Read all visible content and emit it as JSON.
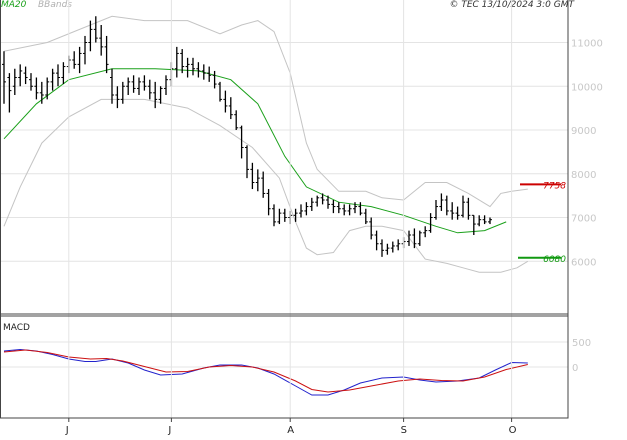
{
  "header": {
    "indicator_ma": "MA20",
    "indicator_bb": "BBands",
    "credit": "© TEC 13/10/2024 3:0 GMT"
  },
  "colors": {
    "ma": "#1aa01a",
    "bands": "#c4c4c4",
    "macd": "#2222cc",
    "signal": "#cc1111",
    "resistance": "#cc0000",
    "support": "#119911",
    "grid": "#e4e4e4",
    "bars": "#000000"
  },
  "chart_data": [
    {
      "type": "line",
      "title": "",
      "y_ticks": [
        6000,
        7000,
        8000,
        9000,
        10000,
        11000
      ],
      "y_tick_labels": [
        "6000",
        "7000",
        "8000",
        "9000",
        "10000",
        "11000"
      ],
      "x_ticks": [
        {
          "label": "J",
          "index": 12
        },
        {
          "label": "J",
          "index": 31
        },
        {
          "label": "A",
          "index": 53
        },
        {
          "label": "S",
          "index": 74
        },
        {
          "label": "O",
          "index": 94
        }
      ],
      "levels": [
        {
          "name": "resistance",
          "value": 7758,
          "label": "7758"
        },
        {
          "name": "support",
          "value": 6080,
          "label": "6080"
        }
      ],
      "ohlc": [
        [
          10500,
          10800,
          9600,
          10100
        ],
        [
          10200,
          10300,
          9400,
          9900
        ],
        [
          10000,
          10400,
          9800,
          10200
        ],
        [
          10200,
          10500,
          10000,
          10350
        ],
        [
          10300,
          10450,
          10050,
          10200
        ],
        [
          10150,
          10300,
          9900,
          10000
        ],
        [
          10000,
          10200,
          9700,
          9850
        ],
        [
          9850,
          10100,
          9600,
          9800
        ],
        [
          9800,
          10200,
          9700,
          10100
        ],
        [
          10100,
          10400,
          9900,
          10300
        ],
        [
          10300,
          10500,
          10000,
          10200
        ],
        [
          10200,
          10550,
          10050,
          10450
        ],
        [
          10450,
          10700,
          10300,
          10600
        ],
        [
          10600,
          10800,
          10400,
          10500
        ],
        [
          10500,
          10900,
          10300,
          10750
        ],
        [
          10750,
          11150,
          10500,
          11000
        ],
        [
          11000,
          11500,
          10800,
          11300
        ],
        [
          11300,
          11600,
          11000,
          11100
        ],
        [
          11100,
          11400,
          10700,
          10900
        ],
        [
          10900,
          11150,
          10300,
          10500
        ],
        [
          10200,
          10400,
          9600,
          9800
        ],
        [
          9800,
          10000,
          9500,
          9700
        ],
        [
          9700,
          10100,
          9600,
          10000
        ],
        [
          10000,
          10200,
          9800,
          10100
        ],
        [
          10100,
          10250,
          9850,
          9950
        ],
        [
          9950,
          10200,
          9800,
          10100
        ],
        [
          10100,
          10250,
          9900,
          10000
        ],
        [
          10000,
          10150,
          9700,
          9850
        ],
        [
          9850,
          10100,
          9500,
          9700
        ],
        [
          9700,
          10000,
          9600,
          9950
        ],
        [
          9950,
          10250,
          9800,
          10150
        ],
        [
          10150,
          10550,
          10000,
          10400
        ],
        [
          10400,
          10900,
          10200,
          10750
        ],
        [
          10750,
          10850,
          10300,
          10450
        ],
        [
          10450,
          10650,
          10200,
          10500
        ],
        [
          10500,
          10650,
          10250,
          10400
        ],
        [
          10400,
          10550,
          10200,
          10350
        ],
        [
          10350,
          10500,
          10150,
          10300
        ],
        [
          10300,
          10450,
          10100,
          10250
        ],
        [
          10250,
          10350,
          9950,
          10050
        ],
        [
          10050,
          10100,
          9650,
          9700
        ],
        [
          9700,
          9900,
          9400,
          9550
        ],
        [
          9550,
          9750,
          9250,
          9350
        ],
        [
          9350,
          9450,
          9000,
          9050
        ],
        [
          9050,
          9100,
          8350,
          8600
        ],
        [
          8600,
          8650,
          7900,
          8100
        ],
        [
          8100,
          8250,
          7650,
          7800
        ],
        [
          7800,
          8100,
          7600,
          7900
        ],
        [
          7900,
          8050,
          7450,
          7550
        ],
        [
          7550,
          7650,
          7050,
          7200
        ],
        [
          7200,
          7300,
          6800,
          6900
        ],
        [
          6900,
          7200,
          6850,
          7100
        ],
        [
          7100,
          7200,
          6900,
          7000
        ],
        [
          7000,
          7150,
          6850,
          7050
        ],
        [
          7050,
          7200,
          6900,
          7100
        ],
        [
          7100,
          7300,
          7000,
          7150
        ],
        [
          7150,
          7350,
          7050,
          7250
        ],
        [
          7250,
          7450,
          7150,
          7350
        ],
        [
          7350,
          7500,
          7250,
          7450
        ],
        [
          7450,
          7550,
          7300,
          7400
        ],
        [
          7400,
          7500,
          7200,
          7300
        ],
        [
          7300,
          7400,
          7100,
          7250
        ],
        [
          7250,
          7350,
          7100,
          7200
        ],
        [
          7200,
          7300,
          7050,
          7150
        ],
        [
          7150,
          7300,
          7050,
          7200
        ],
        [
          7200,
          7350,
          7100,
          7250
        ],
        [
          7250,
          7350,
          7050,
          7100
        ],
        [
          7100,
          7200,
          6850,
          6900
        ],
        [
          6900,
          7000,
          6500,
          6600
        ],
        [
          6600,
          6700,
          6250,
          6400
        ],
        [
          6400,
          6500,
          6100,
          6250
        ],
        [
          6250,
          6400,
          6150,
          6300
        ],
        [
          6300,
          6450,
          6200,
          6350
        ],
        [
          6350,
          6500,
          6250,
          6400
        ],
        [
          6400,
          6550,
          6300,
          6450
        ],
        [
          6450,
          6700,
          6350,
          6600
        ],
        [
          6600,
          6750,
          6300,
          6400
        ],
        [
          6400,
          6700,
          6350,
          6650
        ],
        [
          6650,
          6800,
          6550,
          6700
        ],
        [
          6700,
          7100,
          6650,
          7000
        ],
        [
          7000,
          7400,
          6950,
          7250
        ],
        [
          7250,
          7550,
          7150,
          7400
        ],
        [
          7400,
          7500,
          7050,
          7150
        ],
        [
          7150,
          7350,
          6950,
          7100
        ],
        [
          7100,
          7250,
          6950,
          7050
        ],
        [
          7050,
          7500,
          7000,
          7350
        ],
        [
          7350,
          7450,
          6950,
          7050
        ],
        [
          7050,
          7050,
          6600,
          6850
        ],
        [
          6850,
          7050,
          6800,
          6950
        ],
        [
          6950,
          7050,
          6850,
          6900
        ],
        [
          6900,
          7000,
          6850,
          6950
        ]
      ],
      "ma20": [
        [
          0,
          8800
        ],
        [
          6,
          9600
        ],
        [
          12,
          10150
        ],
        [
          20,
          10400
        ],
        [
          28,
          10400
        ],
        [
          36,
          10350
        ],
        [
          42,
          10150
        ],
        [
          47,
          9600
        ],
        [
          52,
          8400
        ],
        [
          56,
          7700
        ],
        [
          62,
          7350
        ],
        [
          68,
          7250
        ],
        [
          74,
          7050
        ],
        [
          80,
          6800
        ],
        [
          84,
          6650
        ],
        [
          89,
          6700
        ],
        [
          93,
          6900
        ]
      ],
      "bands_upper": [
        [
          0,
          10800
        ],
        [
          8,
          11000
        ],
        [
          14,
          11300
        ],
        [
          20,
          11600
        ],
        [
          26,
          11500
        ],
        [
          34,
          11500
        ],
        [
          40,
          11200
        ],
        [
          44,
          11400
        ],
        [
          47,
          11500
        ],
        [
          50,
          11250
        ],
        [
          53,
          10300
        ],
        [
          56,
          8700
        ],
        [
          58,
          8100
        ],
        [
          62,
          7600
        ],
        [
          67,
          7600
        ],
        [
          70,
          7450
        ],
        [
          74,
          7400
        ],
        [
          78,
          7800
        ],
        [
          82,
          7800
        ],
        [
          86,
          7550
        ],
        [
          90,
          7250
        ],
        [
          92,
          7550
        ],
        [
          94,
          7600
        ],
        [
          97,
          7650
        ]
      ],
      "bands_lower": [
        [
          0,
          6800
        ],
        [
          3,
          7700
        ],
        [
          7,
          8700
        ],
        [
          12,
          9300
        ],
        [
          18,
          9700
        ],
        [
          26,
          9700
        ],
        [
          34,
          9500
        ],
        [
          40,
          9100
        ],
        [
          46,
          8600
        ],
        [
          51,
          7900
        ],
        [
          54,
          6900
        ],
        [
          56,
          6300
        ],
        [
          58,
          6150
        ],
        [
          61,
          6200
        ],
        [
          64,
          6700
        ],
        [
          67,
          6800
        ],
        [
          70,
          6800
        ],
        [
          74,
          6700
        ],
        [
          78,
          6050
        ],
        [
          82,
          5950
        ],
        [
          85,
          5850
        ],
        [
          88,
          5750
        ],
        [
          92,
          5750
        ],
        [
          95,
          5850
        ],
        [
          97,
          6000
        ]
      ]
    },
    {
      "type": "line",
      "title": "MACD",
      "y_ticks": [
        0,
        500
      ],
      "y_tick_labels": [
        "0",
        "500"
      ],
      "series": [
        {
          "name": "macd",
          "values": [
            [
              0,
              320
            ],
            [
              3,
              350
            ],
            [
              6,
              320
            ],
            [
              9,
              250
            ],
            [
              12,
              160
            ],
            [
              15,
              110
            ],
            [
              17,
              110
            ],
            [
              20,
              160
            ],
            [
              23,
              80
            ],
            [
              26,
              -60
            ],
            [
              29,
              -160
            ],
            [
              33,
              -140
            ],
            [
              37,
              -20
            ],
            [
              40,
              40
            ],
            [
              44,
              40
            ],
            [
              47,
              -20
            ],
            [
              50,
              -140
            ],
            [
              54,
              -380
            ],
            [
              57,
              -560
            ],
            [
              60,
              -560
            ],
            [
              63,
              -460
            ],
            [
              66,
              -320
            ],
            [
              70,
              -220
            ],
            [
              74,
              -200
            ],
            [
              77,
              -260
            ],
            [
              80,
              -300
            ],
            [
              84,
              -280
            ],
            [
              88,
              -220
            ],
            [
              91,
              -60
            ],
            [
              94,
              90
            ],
            [
              97,
              80
            ]
          ]
        },
        {
          "name": "signal",
          "values": [
            [
              0,
              300
            ],
            [
              4,
              340
            ],
            [
              8,
              290
            ],
            [
              12,
              200
            ],
            [
              16,
              160
            ],
            [
              19,
              170
            ],
            [
              22,
              120
            ],
            [
              26,
              10
            ],
            [
              30,
              -100
            ],
            [
              34,
              -90
            ],
            [
              38,
              0
            ],
            [
              42,
              30
            ],
            [
              46,
              0
            ],
            [
              50,
              -100
            ],
            [
              54,
              -280
            ],
            [
              57,
              -450
            ],
            [
              60,
              -500
            ],
            [
              64,
              -460
            ],
            [
              68,
              -380
            ],
            [
              73,
              -280
            ],
            [
              77,
              -240
            ],
            [
              81,
              -270
            ],
            [
              85,
              -280
            ],
            [
              89,
              -200
            ],
            [
              93,
              -50
            ],
            [
              97,
              50
            ]
          ]
        }
      ]
    }
  ]
}
